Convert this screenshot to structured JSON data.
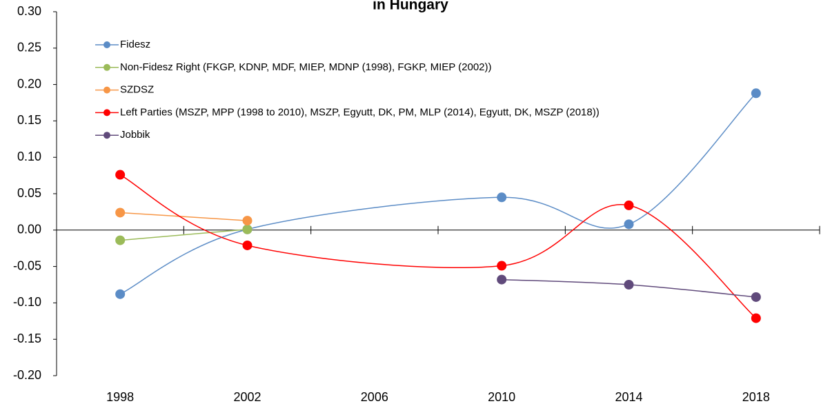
{
  "chart_data": {
    "type": "line",
    "title": "in Hungary",
    "smooth": true,
    "xlim": [
      1996,
      2020
    ],
    "xticks": [
      1998,
      2002,
      2006,
      2010,
      2014,
      2018
    ],
    "xtick_marks": [
      1996,
      2000,
      2004,
      2008,
      2012,
      2016,
      2020
    ],
    "ylim": [
      -0.2,
      0.3
    ],
    "yticks": [
      {
        "value": -0.2,
        "label": "-0.20"
      },
      {
        "value": -0.15,
        "label": "-0.15"
      },
      {
        "value": -0.1,
        "label": "-0.10"
      },
      {
        "value": -0.05,
        "label": "-0.05"
      },
      {
        "value": 0,
        "label": "0.00"
      },
      {
        "value": 0.05,
        "label": "0.05"
      },
      {
        "value": 0.1,
        "label": "0.10"
      },
      {
        "value": 0.15,
        "label": "0.15"
      },
      {
        "value": 0.2,
        "label": "0.20"
      },
      {
        "value": 0.25,
        "label": "0.25"
      },
      {
        "value": 0.3,
        "label": "0.30"
      }
    ],
    "legend": "top-left",
    "series": [
      {
        "name": "Fidesz",
        "color": "#5b8cc6",
        "x": [
          1998,
          2002,
          2010,
          2014,
          2018
        ],
        "values": [
          -0.088,
          0.001,
          0.045,
          0.008,
          0.188
        ]
      },
      {
        "name": "Non-Fidesz Right (FKGP, KDNP, MDF, MIEP, MDNP (1998), FGKP, MIEP (2002))",
        "color": "#9bbb59",
        "x": [
          1998,
          2002
        ],
        "values": [
          -0.014,
          0.001
        ]
      },
      {
        "name": "SZDSZ",
        "color": "#f79646",
        "x": [
          1998,
          2002
        ],
        "values": [
          0.024,
          0.013
        ]
      },
      {
        "name": "Left Parties (MSZP, MPP (1998 to 2010), MSZP, Egyutt, DK, PM, MLP (2014), Egyutt, DK, MSZP (2018))",
        "color": "#ff0000",
        "x": [
          1998,
          2002,
          2010,
          2014,
          2018
        ],
        "values": [
          0.076,
          -0.021,
          -0.049,
          0.034,
          -0.121
        ]
      },
      {
        "name": "Jobbik",
        "color": "#604a7b",
        "x": [
          2010,
          2014,
          2018
        ],
        "values": [
          -0.068,
          -0.075,
          -0.092
        ]
      }
    ]
  }
}
